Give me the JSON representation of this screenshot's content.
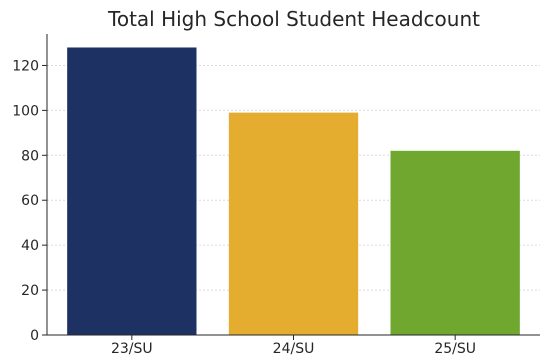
{
  "chart_data": {
    "type": "bar",
    "title": "Total High School Student Headcount",
    "xlabel": "",
    "ylabel": "",
    "categories": [
      "23/SU",
      "24/SU",
      "25/SU"
    ],
    "values": [
      128,
      99,
      82
    ],
    "colors": [
      "#1d3163",
      "#e5ad2f",
      "#6fa72f"
    ],
    "ylim": [
      0,
      134
    ],
    "yticks": [
      0,
      20,
      40,
      60,
      80,
      100,
      120
    ],
    "grid": true,
    "legend": "none"
  }
}
